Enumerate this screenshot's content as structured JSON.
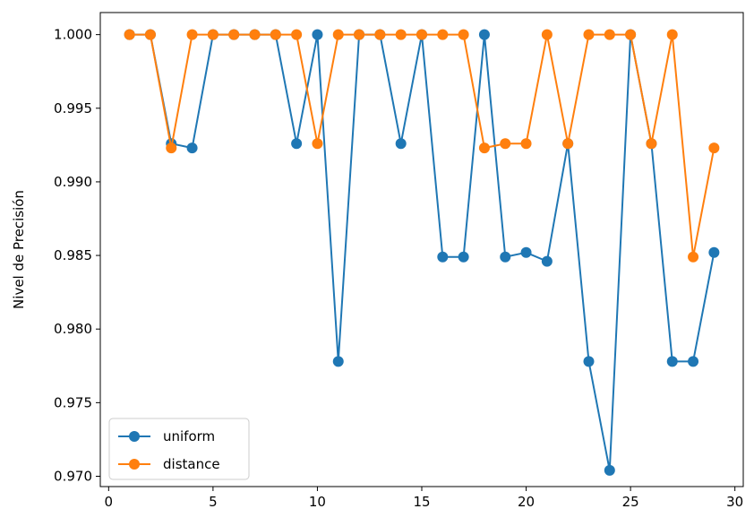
{
  "chart_data": {
    "type": "line",
    "title": "",
    "xlabel": "",
    "ylabel": "Nivel de Precisión",
    "xlim": [
      -0.4,
      30.4
    ],
    "ylim": [
      0.9693,
      1.0015
    ],
    "xticks": [
      0,
      5,
      10,
      15,
      20,
      25,
      30
    ],
    "yticks": [
      0.97,
      0.975,
      0.98,
      0.985,
      0.99,
      0.995,
      1.0
    ],
    "ytick_labels": [
      "0.970",
      "0.975",
      "0.980",
      "0.985",
      "0.990",
      "0.995",
      "1.000"
    ],
    "grid": false,
    "legend_position": "lower-left",
    "x": [
      1,
      2,
      3,
      4,
      5,
      6,
      7,
      8,
      9,
      10,
      11,
      12,
      13,
      14,
      15,
      16,
      17,
      18,
      19,
      20,
      21,
      22,
      23,
      24,
      25,
      26,
      27,
      28,
      29
    ],
    "series": [
      {
        "name": "uniform",
        "color": "#1f77b4",
        "values": [
          1.0,
          1.0,
          0.9926,
          0.9923,
          1.0,
          1.0,
          1.0,
          1.0,
          0.9926,
          1.0,
          0.9778,
          1.0,
          1.0,
          0.9926,
          1.0,
          0.9849,
          0.9849,
          1.0,
          0.9849,
          0.9852,
          0.9846,
          0.9926,
          0.9778,
          0.9704,
          1.0,
          0.9926,
          0.9778,
          0.9778,
          0.9852
        ]
      },
      {
        "name": "distance",
        "color": "#ff7f0e",
        "values": [
          1.0,
          1.0,
          0.9923,
          1.0,
          1.0,
          1.0,
          1.0,
          1.0,
          1.0,
          0.9926,
          1.0,
          1.0,
          1.0,
          1.0,
          1.0,
          1.0,
          1.0,
          0.9923,
          0.9926,
          0.9926,
          1.0,
          0.9926,
          1.0,
          1.0,
          1.0,
          0.9926,
          1.0,
          0.9849,
          0.9923
        ]
      }
    ]
  }
}
